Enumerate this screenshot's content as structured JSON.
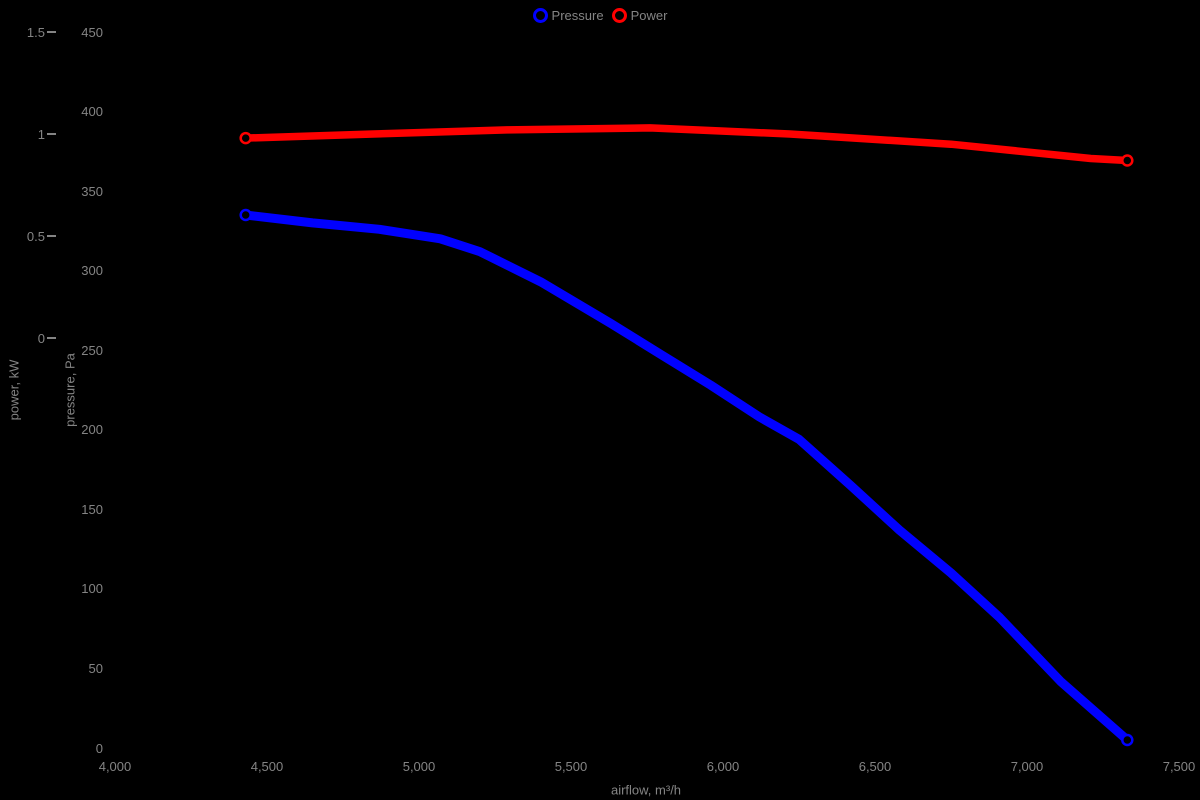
{
  "legend": {
    "position": "top-center",
    "items": [
      {
        "label": "Pressure",
        "color": "#0000ff",
        "marker": "open-circle"
      },
      {
        "label": "Power",
        "color": "#ff0000",
        "marker": "open-circle"
      }
    ]
  },
  "colors": {
    "background": "#000000",
    "text": "#848484",
    "pressure_series": "#0000ff",
    "power_series": "#ff0000"
  },
  "chart_data": {
    "type": "line",
    "title": "",
    "xlabel": "airflow, m³/h",
    "x_range": [
      4000,
      7500
    ],
    "x_tick_values": [
      4000,
      4500,
      5000,
      5500,
      6000,
      6500,
      7000,
      7500
    ],
    "x_tick_labels": [
      "4,000",
      "4,500",
      "5,000",
      "5,500",
      "6,000",
      "6,500",
      "7,000",
      "7,500"
    ],
    "grid": false,
    "legend_position": "top-center",
    "axes": [
      {
        "id": "power",
        "label": "power, kW",
        "side": "left-outer",
        "range": [
          0,
          1.5
        ],
        "tick_values": [
          1.5,
          1,
          0.5,
          0
        ],
        "tick_labels": [
          "1.5",
          "1",
          "0.5",
          "0"
        ],
        "has_tick_marks": true
      },
      {
        "id": "pressure",
        "label": "pressure, Pa",
        "side": "left-inner",
        "range": [
          0,
          450
        ],
        "tick_values": [
          450,
          400,
          350,
          300,
          250,
          200,
          150,
          100,
          50,
          0
        ],
        "tick_labels": [
          "450",
          "400",
          "350",
          "300",
          "250",
          "200",
          "150",
          "100",
          "50",
          "0"
        ],
        "has_tick_marks": false
      }
    ],
    "series": [
      {
        "name": "Pressure",
        "axis": "pressure",
        "color": "#0000ff",
        "points": [
          [
            4430,
            335
          ],
          [
            4650,
            330
          ],
          [
            4870,
            326
          ],
          [
            5070,
            320
          ],
          [
            5200,
            312
          ],
          [
            5400,
            293
          ],
          [
            5630,
            267
          ],
          [
            5790,
            248
          ],
          [
            5960,
            228
          ],
          [
            6120,
            208
          ],
          [
            6250,
            194
          ],
          [
            6420,
            165
          ],
          [
            6580,
            137
          ],
          [
            6750,
            110
          ],
          [
            6910,
            82
          ],
          [
            7110,
            42
          ],
          [
            7330,
            5
          ]
        ]
      },
      {
        "name": "Power",
        "axis": "power",
        "color": "#ff0000",
        "points": [
          [
            4430,
            0.98
          ],
          [
            4850,
            1.0
          ],
          [
            5290,
            1.02
          ],
          [
            5760,
            1.03
          ],
          [
            6220,
            1.0
          ],
          [
            6750,
            0.95
          ],
          [
            7210,
            0.88
          ],
          [
            7330,
            0.87
          ]
        ]
      }
    ]
  }
}
